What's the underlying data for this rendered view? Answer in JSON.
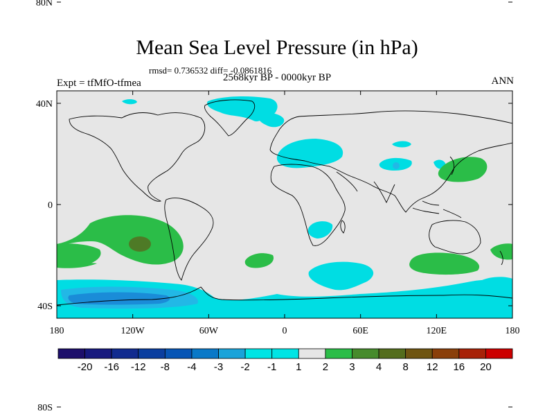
{
  "figure": {
    "title": "Mean Sea Level Pressure (in hPa)",
    "stats": "rmsd= 0.736532 diff= -0.0861816",
    "period": "2568kyr BP - 0000kyr BP",
    "experiment": "Expt = tfMfO-tfmea",
    "season": "ANN"
  },
  "axes": {
    "lon_ticks": [
      "180",
      "120W",
      "60W",
      "0",
      "60E",
      "120E",
      "180"
    ],
    "lat_ticks": [
      "80N",
      "40N",
      "0",
      "40S",
      "80S"
    ]
  },
  "legend": {
    "labels": [
      "-20",
      "-16",
      "-12",
      "-8",
      "-4",
      "-3",
      "-2",
      "-1",
      "1",
      "2",
      "3",
      "4",
      "8",
      "12",
      "16",
      "20"
    ],
    "colors": [
      "#1d0f6b",
      "#17197e",
      "#112b8f",
      "#0a3e9f",
      "#0755b5",
      "#0a79c8",
      "#1aa3d9",
      "#00e5e5",
      "#e6e6e6",
      "#2bbd48",
      "#468b2c",
      "#546d1d",
      "#6f5512",
      "#8a3f0a",
      "#a72208",
      "#cc0000"
    ]
  },
  "colors": {
    "ocean": "#e6e6e6",
    "coast": "#000000",
    "cyan": "#00dde3",
    "light_blue": "#22b8e6",
    "mid_blue": "#1a8cd8",
    "green": "#2bbd48",
    "dark_green": "#4e7a26"
  }
}
